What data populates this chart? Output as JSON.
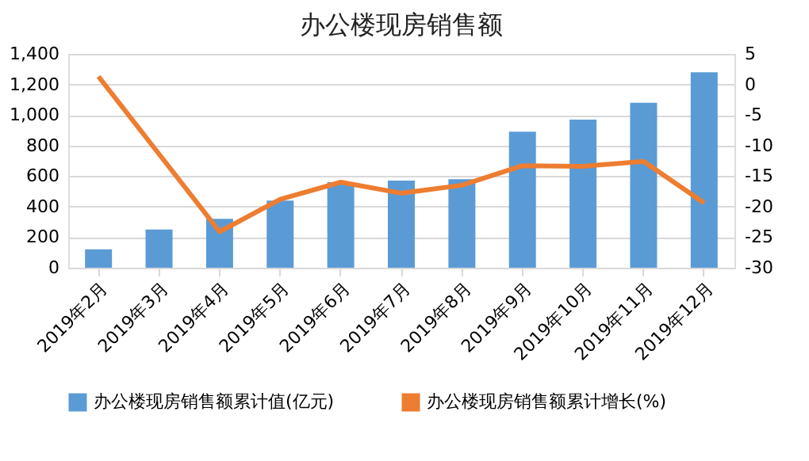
{
  "chart_data": {
    "type": "bar",
    "title": "办公楼现房销售额",
    "categories": [
      "2019年2月",
      "2019年3月",
      "2019年4月",
      "2019年5月",
      "2019年6月",
      "2019年7月",
      "2019年8月",
      "2019年9月",
      "2019年10月",
      "2019年11月",
      "2019年12月"
    ],
    "series": [
      {
        "name": "办公楼现房销售额累计值(亿元)",
        "color": "#5b9bd5",
        "values": [
          120,
          250,
          320,
          440,
          560,
          570,
          580,
          890,
          970,
          1080,
          1280
        ]
      },
      {
        "name": "办公楼现房销售额累计增长(%)",
        "type": "line",
        "axis": "y2",
        "color": "#ed7d31",
        "values": [
          1.3,
          -11.4,
          -24.1,
          -18.8,
          -16.0,
          -17.8,
          -16.5,
          -13.3,
          -13.4,
          -12.6,
          -19.4
        ]
      }
    ],
    "ylim": [
      0,
      1400
    ],
    "yticks": [
      0,
      200,
      400,
      600,
      800,
      {
        "value": 1000,
        "label": "1,000"
      },
      {
        "value": 1200,
        "label": "1,200"
      },
      {
        "value": 1400,
        "label": "1,400"
      }
    ],
    "y2lim": [
      -30,
      5
    ],
    "y2ticks": [
      -30,
      -25,
      -20,
      -15,
      -10,
      -5,
      0,
      5
    ],
    "grid": "y",
    "legend": "bottom",
    "marker": "none",
    "line_style": "solid"
  }
}
